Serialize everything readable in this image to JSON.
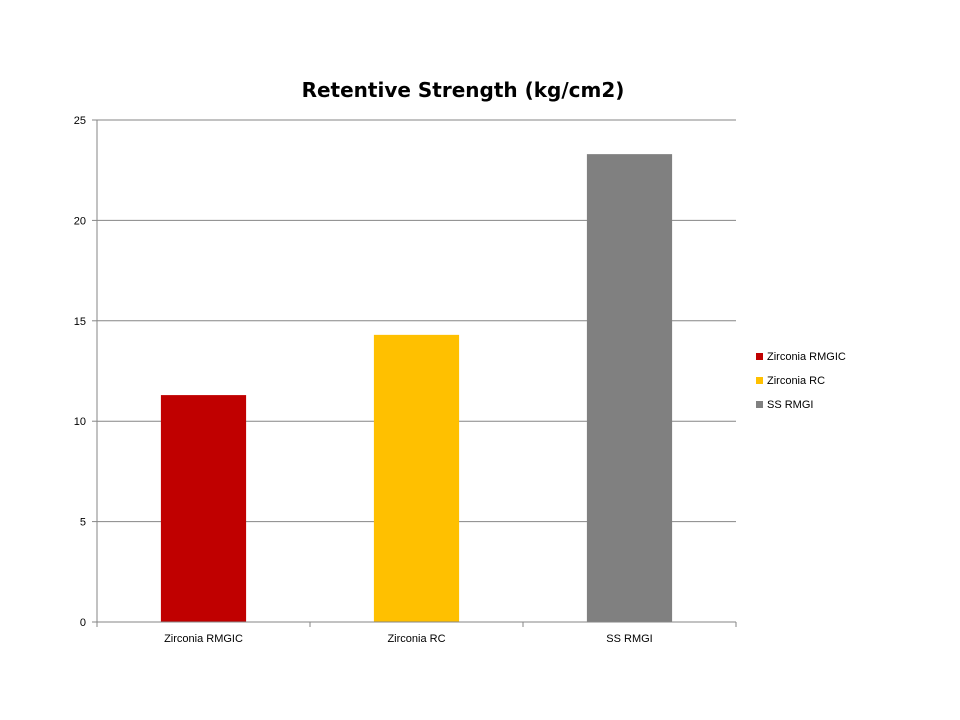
{
  "chart_data": {
    "type": "bar",
    "title": "Retentive Strength (kg/cm2)",
    "xlabel": "",
    "ylabel": "",
    "categories": [
      "Zirconia RMGIC",
      "Zirconia RC",
      "SS RMGI"
    ],
    "values": [
      11.3,
      14.3,
      23.3
    ],
    "colors": [
      "#c00000",
      "#ffc000",
      "#808080"
    ],
    "ylim": [
      0,
      25
    ],
    "yticks": [
      0,
      5,
      10,
      15,
      20,
      25
    ],
    "grid": true,
    "legend": {
      "placement": "right",
      "entries": [
        "Zirconia RMGIC",
        "Zirconia RC",
        "SS RMGI"
      ]
    }
  }
}
